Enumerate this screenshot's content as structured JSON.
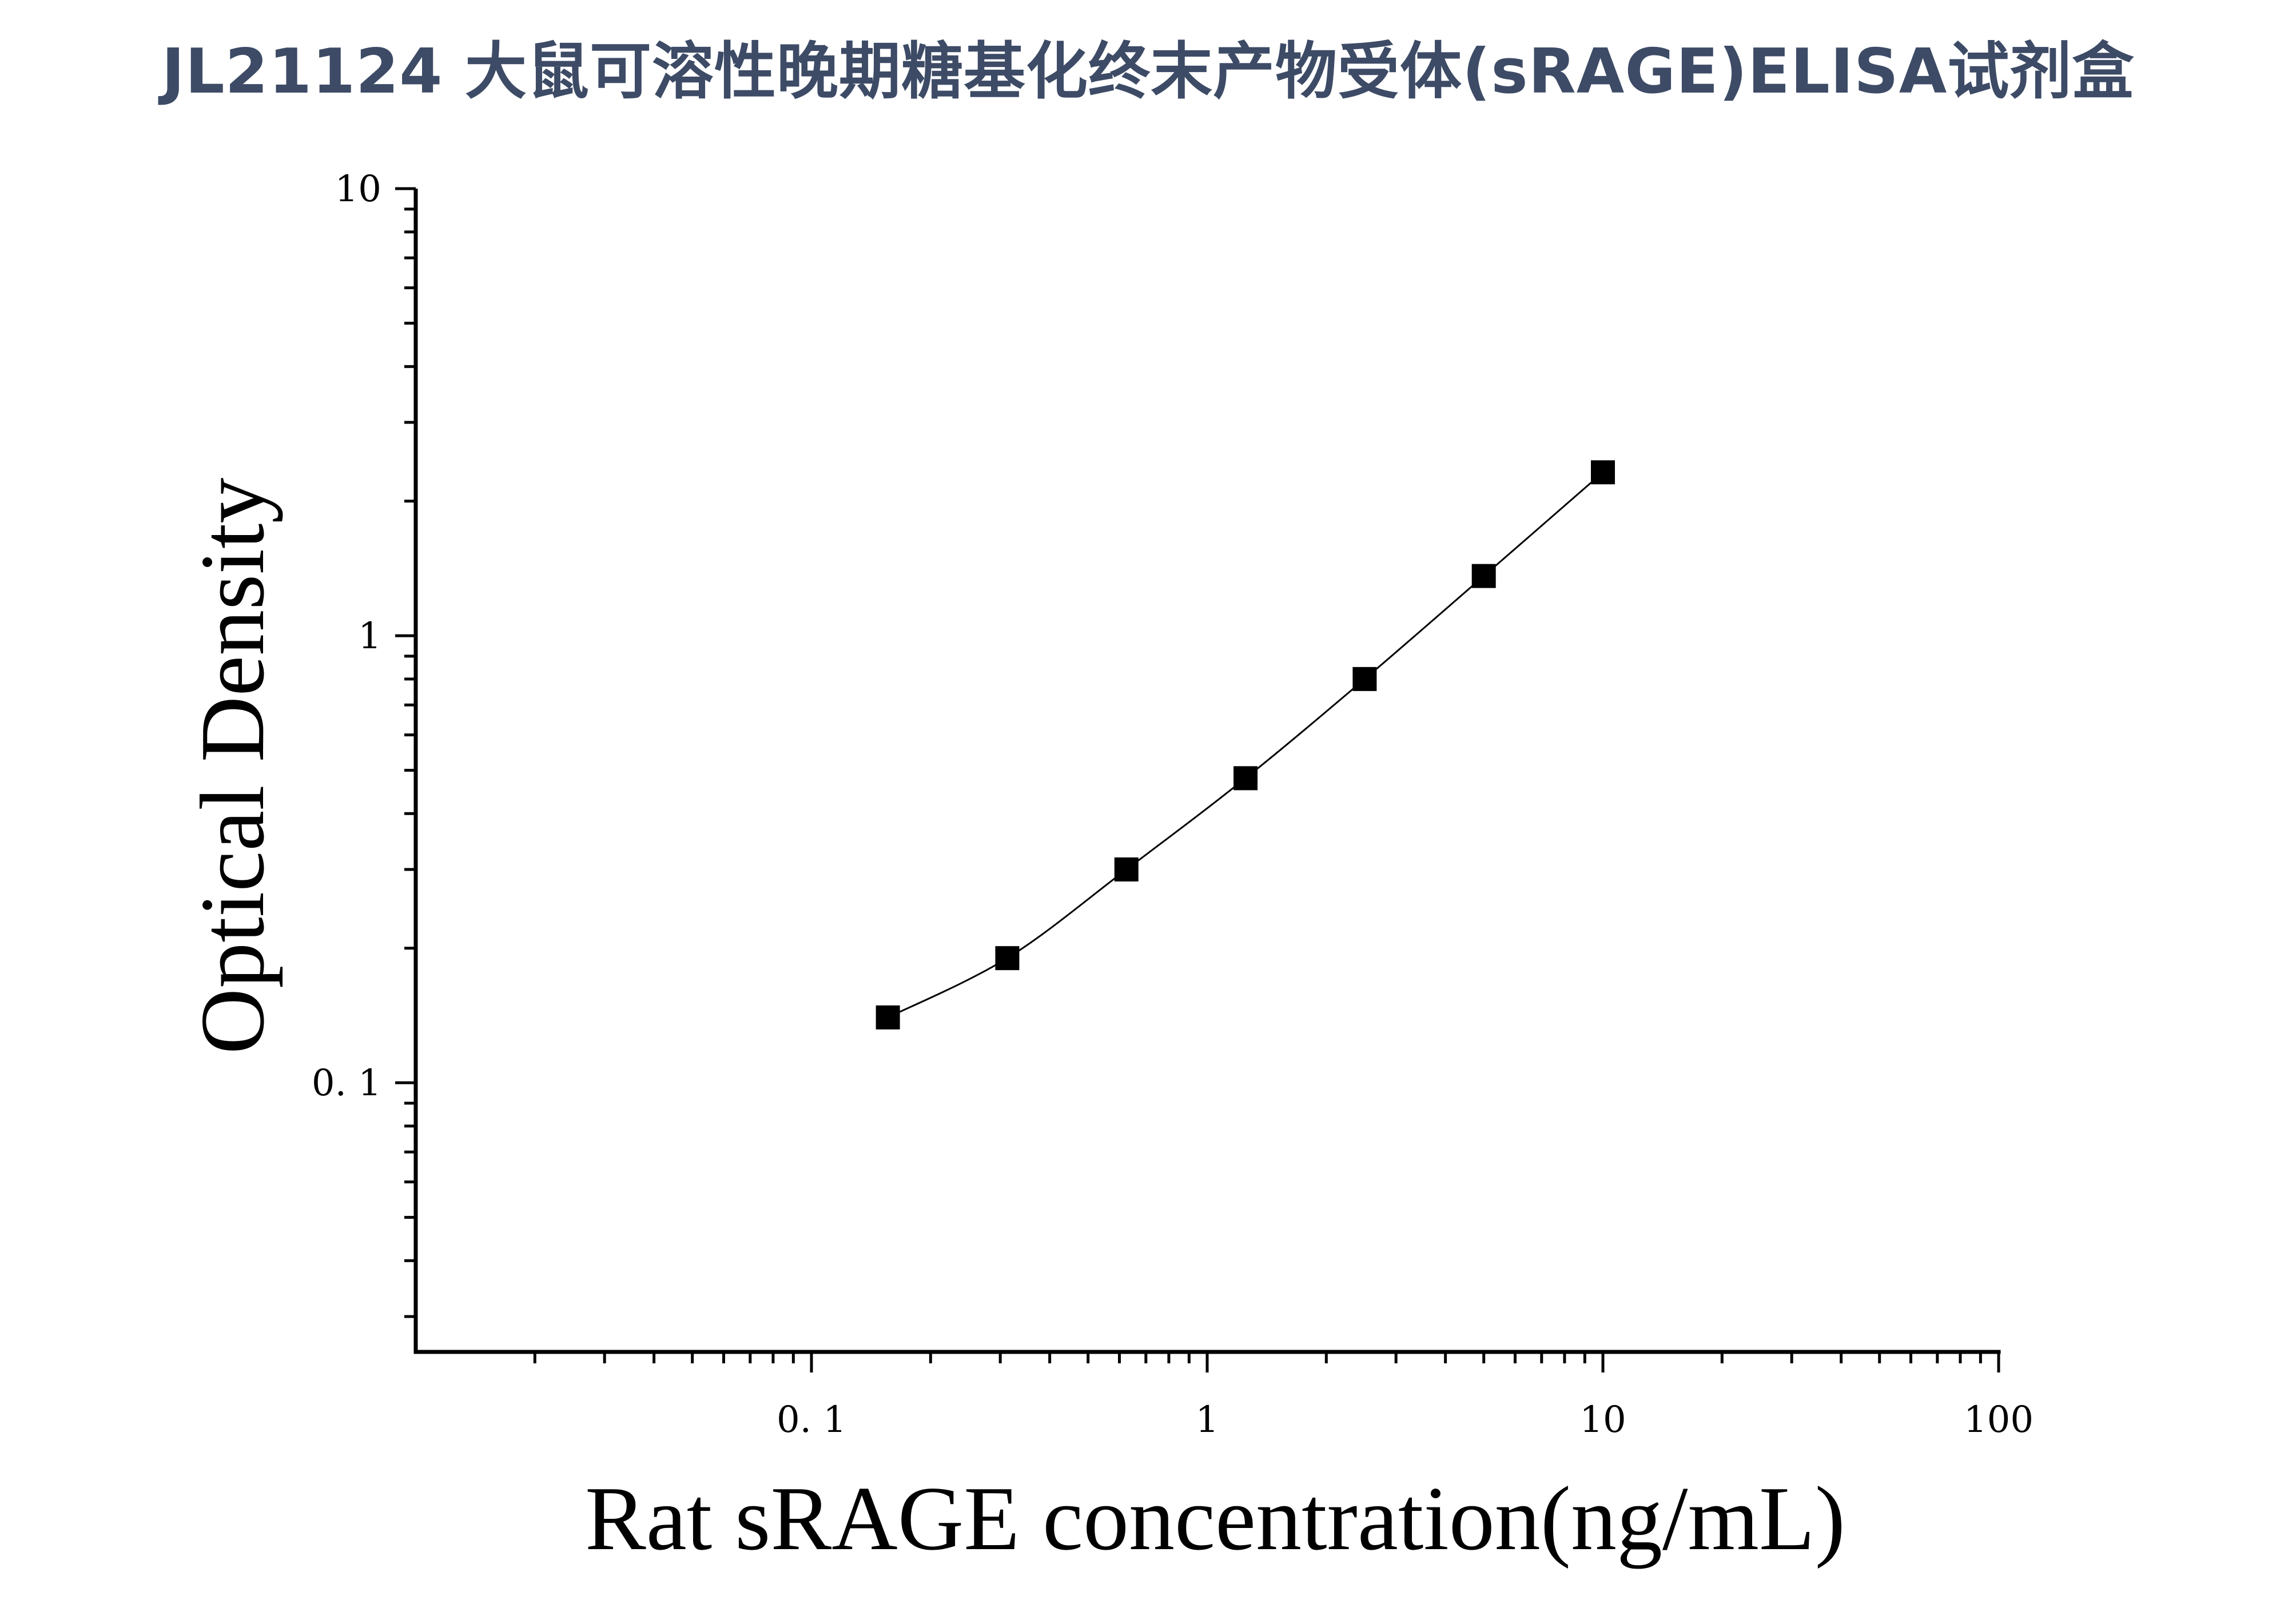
{
  "title": "JL21124 大鼠可溶性晚期糖基化终末产物受体(sRAGE)ELISA试剂盒",
  "chart_data": {
    "type": "line",
    "xlabel": "Rat sRAGE concentration(ng/mL)",
    "ylabel": "Optical Density",
    "x_scale": "log",
    "y_scale": "log",
    "xlim": [
      0.01,
      100
    ],
    "ylim": [
      0.025,
      10
    ],
    "x_ticks": [
      {
        "value": 0.1,
        "label": "0. 1"
      },
      {
        "value": 1,
        "label": "1"
      },
      {
        "value": 10,
        "label": "10"
      },
      {
        "value": 100,
        "label": "100"
      }
    ],
    "y_ticks": [
      {
        "value": 0.1,
        "label": "0. 1"
      },
      {
        "value": 1,
        "label": "1"
      },
      {
        "value": 10,
        "label": "10"
      }
    ],
    "grid": false,
    "marker": "square",
    "color": "#000000",
    "series": [
      {
        "x": [
          0.156,
          0.3125,
          0.625,
          1.25,
          2.5,
          5,
          10
        ],
        "y": [
          0.14,
          0.19,
          0.3,
          0.48,
          0.8,
          1.36,
          2.32
        ]
      }
    ]
  }
}
